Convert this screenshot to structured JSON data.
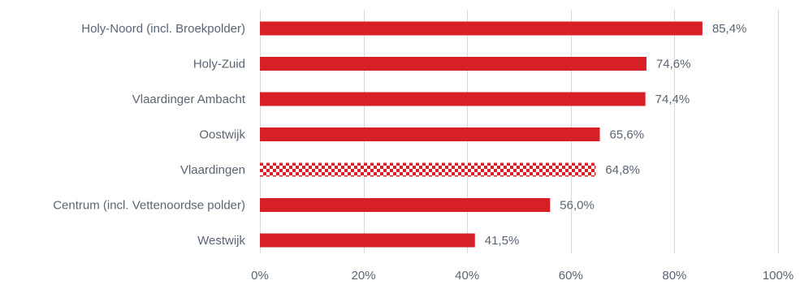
{
  "chart_data": {
    "type": "bar",
    "orientation": "horizontal",
    "categories": [
      "Holy-Noord (incl. Broekpolder)",
      "Holy-Zuid",
      "Vlaardinger Ambacht",
      "Oostwijk",
      "Vlaardingen",
      "Centrum (incl. Vettenoordse polder)",
      "Westwijk"
    ],
    "values": [
      85.4,
      74.6,
      74.4,
      65.6,
      64.8,
      56.0,
      41.5
    ],
    "value_labels": [
      "85,4%",
      "74,6%",
      "74,4%",
      "65,6%",
      "64,8%",
      "56,0%",
      "41,5%"
    ],
    "highlight": [
      "",
      "",
      "",
      "",
      "checkered",
      "",
      ""
    ],
    "xlim": [
      0,
      100
    ],
    "xticks": [
      0,
      20,
      40,
      60,
      80,
      100
    ],
    "xtick_labels": [
      "0%",
      "20%",
      "40%",
      "60%",
      "80%",
      "100%"
    ],
    "grid": true,
    "bar_color": "#d71f26",
    "title": "",
    "xlabel": "",
    "ylabel": ""
  }
}
